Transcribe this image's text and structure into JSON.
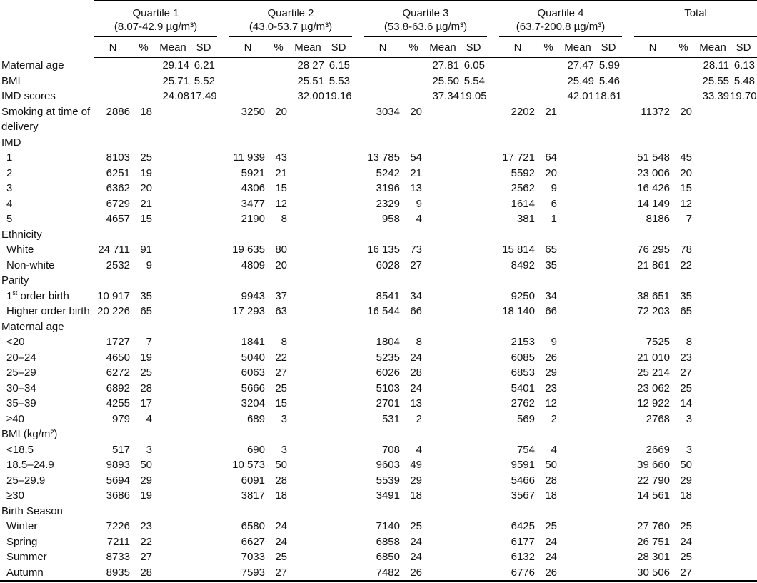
{
  "table": {
    "columns": [
      "N",
      "%",
      "Mean",
      "SD"
    ],
    "groups": [
      {
        "name": "Quartile 1",
        "range": "(8.07-42.9 µg/m³)"
      },
      {
        "name": "Quartile 2",
        "range": "(43.0-53.7 µg/m³)"
      },
      {
        "name": "Quartile 3",
        "range": "(53.8-63.6 µg/m³)"
      },
      {
        "name": "Quartile 4",
        "range": "(63.7-200.8 µg/m³)"
      },
      {
        "name": "Total",
        "range": ""
      }
    ],
    "rows": [
      {
        "label": "Maternal age",
        "values": [
          "",
          "",
          "29.14",
          "6.21",
          "",
          "",
          "28 27",
          "6.15",
          "",
          "",
          "27.81",
          "6.05",
          "",
          "",
          "27.47",
          "5.99",
          "",
          "",
          "28.11",
          "6.13"
        ]
      },
      {
        "label": "BMI",
        "values": [
          "",
          "",
          "25.71",
          "5.52",
          "",
          "",
          "25.51",
          "5.53",
          "",
          "",
          "25.50",
          "5.54",
          "",
          "",
          "25.49",
          "5.46",
          "",
          "",
          "25.55",
          "5.48"
        ]
      },
      {
        "label": "IMD scores",
        "values": [
          "",
          "",
          "24.08",
          "17.49",
          "",
          "",
          "32.00",
          "19.16",
          "",
          "",
          "37.34",
          "19.05",
          "",
          "",
          "42.01",
          "18.61",
          "",
          "",
          "33.39",
          "19.70"
        ]
      },
      {
        "label": "Smoking at time of delivery",
        "values": [
          "2886",
          "18",
          "",
          "",
          "3250",
          "20",
          "",
          "",
          "3034",
          "20",
          "",
          "",
          "2202",
          "21",
          "",
          "",
          "11372",
          "20",
          "",
          ""
        ]
      },
      {
        "label": "IMD",
        "section": true
      },
      {
        "label": "1",
        "indent": true,
        "values": [
          "8103",
          "25",
          "",
          "",
          "11 939",
          "43",
          "",
          "",
          "13 785",
          "54",
          "",
          "",
          "17 721",
          "64",
          "",
          "",
          "51 548",
          "45",
          "",
          ""
        ]
      },
      {
        "label": "2",
        "indent": true,
        "values": [
          "6251",
          "19",
          "",
          "",
          "5921",
          "21",
          "",
          "",
          "5242",
          "21",
          "",
          "",
          "5592",
          "20",
          "",
          "",
          "23 006",
          "20",
          "",
          ""
        ]
      },
      {
        "label": "3",
        "indent": true,
        "values": [
          "6362",
          "20",
          "",
          "",
          "4306",
          "15",
          "",
          "",
          "3196",
          "13",
          "",
          "",
          "2562",
          "9",
          "",
          "",
          "16 426",
          "15",
          "",
          ""
        ]
      },
      {
        "label": "4",
        "indent": true,
        "values": [
          "6729",
          "21",
          "",
          "",
          "3477",
          "12",
          "",
          "",
          "2329",
          "9",
          "",
          "",
          "1614",
          "6",
          "",
          "",
          "14 149",
          "12",
          "",
          ""
        ]
      },
      {
        "label": "5",
        "indent": true,
        "values": [
          "4657",
          "15",
          "",
          "",
          "2190",
          "8",
          "",
          "",
          "958",
          "4",
          "",
          "",
          "381",
          "1",
          "",
          "",
          "8186",
          "7",
          "",
          ""
        ]
      },
      {
        "label": "Ethnicity",
        "section": true
      },
      {
        "label": "White",
        "indent": true,
        "values": [
          "24 711",
          "91",
          "",
          "",
          "19 635",
          "80",
          "",
          "",
          "16 135",
          "73",
          "",
          "",
          "15 814",
          "65",
          "",
          "",
          "76 295",
          "78",
          "",
          ""
        ]
      },
      {
        "label": "Non-white",
        "indent": true,
        "values": [
          "2532",
          "9",
          "",
          "",
          "4809",
          "20",
          "",
          "",
          "6028",
          "27",
          "",
          "",
          "8492",
          "35",
          "",
          "",
          "21 861",
          "22",
          "",
          ""
        ]
      },
      {
        "label": "Parity",
        "section": true
      },
      {
        "label": "1st order birth",
        "indent": true,
        "label_parts": [
          {
            "text": "1"
          },
          {
            "text": "st",
            "sup": true
          },
          {
            "text": " order birth"
          }
        ],
        "values": [
          "10 917",
          "35",
          "",
          "",
          "9943",
          "37",
          "",
          "",
          "8541",
          "34",
          "",
          "",
          "9250",
          "34",
          "",
          "",
          "38 651",
          "35",
          "",
          ""
        ]
      },
      {
        "label": "Higher order birth",
        "indent": true,
        "values": [
          "20 226",
          "65",
          "",
          "",
          "17 293",
          "63",
          "",
          "",
          "16 544",
          "66",
          "",
          "",
          "18 140",
          "66",
          "",
          "",
          "72 203",
          "65",
          "",
          ""
        ]
      },
      {
        "label": "Maternal age",
        "section": true
      },
      {
        "label": "<20",
        "indent": true,
        "values": [
          "1727",
          "7",
          "",
          "",
          "1841",
          "8",
          "",
          "",
          "1804",
          "8",
          "",
          "",
          "2153",
          "9",
          "",
          "",
          "7525",
          "8",
          "",
          ""
        ]
      },
      {
        "label": "20–24",
        "indent": true,
        "values": [
          "4650",
          "19",
          "",
          "",
          "5040",
          "22",
          "",
          "",
          "5235",
          "24",
          "",
          "",
          "6085",
          "26",
          "",
          "",
          "21 010",
          "23",
          "",
          ""
        ]
      },
      {
        "label": "25–29",
        "indent": true,
        "values": [
          "6272",
          "25",
          "",
          "",
          "6063",
          "27",
          "",
          "",
          "6026",
          "28",
          "",
          "",
          "6853",
          "29",
          "",
          "",
          "25 214",
          "27",
          "",
          ""
        ]
      },
      {
        "label": "30–34",
        "indent": true,
        "values": [
          "6892",
          "28",
          "",
          "",
          "5666",
          "25",
          "",
          "",
          "5103",
          "24",
          "",
          "",
          "5401",
          "23",
          "",
          "",
          "23 062",
          "25",
          "",
          ""
        ]
      },
      {
        "label": "35–39",
        "indent": true,
        "values": [
          "4255",
          "17",
          "",
          "",
          "3204",
          "15",
          "",
          "",
          "2701",
          "13",
          "",
          "",
          "2762",
          "12",
          "",
          "",
          "12 922",
          "14",
          "",
          ""
        ]
      },
      {
        "label": "≥40",
        "indent": true,
        "values": [
          "979",
          "4",
          "",
          "",
          "689",
          "3",
          "",
          "",
          "531",
          "2",
          "",
          "",
          "569",
          "2",
          "",
          "",
          "2768",
          "3",
          "",
          ""
        ]
      },
      {
        "label": "BMI (kg/m²)",
        "section": true
      },
      {
        "label": "<18.5",
        "indent": true,
        "values": [
          "517",
          "3",
          "",
          "",
          "690",
          "3",
          "",
          "",
          "708",
          "4",
          "",
          "",
          "754",
          "4",
          "",
          "",
          "2669",
          "3",
          "",
          ""
        ]
      },
      {
        "label": "18.5–24.9",
        "indent": true,
        "values": [
          "9893",
          "50",
          "",
          "",
          "10 573",
          "50",
          "",
          "",
          "9603",
          "49",
          "",
          "",
          "9591",
          "50",
          "",
          "",
          "39 660",
          "50",
          "",
          ""
        ]
      },
      {
        "label": "25–29.9",
        "indent": true,
        "values": [
          "5694",
          "29",
          "",
          "",
          "6091",
          "28",
          "",
          "",
          "5539",
          "29",
          "",
          "",
          "5466",
          "28",
          "",
          "",
          "22 790",
          "29",
          "",
          ""
        ]
      },
      {
        "label": "≥30",
        "indent": true,
        "values": [
          "3686",
          "19",
          "",
          "",
          "3817",
          "18",
          "",
          "",
          "3491",
          "18",
          "",
          "",
          "3567",
          "18",
          "",
          "",
          "14 561",
          "18",
          "",
          ""
        ]
      },
      {
        "label": "Birth Season",
        "section": true
      },
      {
        "label": "Winter",
        "indent": true,
        "values": [
          "7226",
          "23",
          "",
          "",
          "6580",
          "24",
          "",
          "",
          "7140",
          "25",
          "",
          "",
          "6425",
          "25",
          "",
          "",
          "27 760",
          "25",
          "",
          ""
        ]
      },
      {
        "label": "Spring",
        "indent": true,
        "values": [
          "7211",
          "22",
          "",
          "",
          "6627",
          "24",
          "",
          "",
          "6858",
          "24",
          "",
          "",
          "6177",
          "24",
          "",
          "",
          "26 751",
          "24",
          "",
          ""
        ]
      },
      {
        "label": "Summer",
        "indent": true,
        "values": [
          "8733",
          "27",
          "",
          "",
          "7033",
          "25",
          "",
          "",
          "6850",
          "24",
          "",
          "",
          "6132",
          "24",
          "",
          "",
          "28 301",
          "25",
          "",
          ""
        ]
      },
      {
        "label": "Autumn",
        "indent": true,
        "values": [
          "8935",
          "28",
          "",
          "",
          "7593",
          "27",
          "",
          "",
          "7482",
          "26",
          "",
          "",
          "6776",
          "26",
          "",
          "",
          "30 506",
          "27",
          "",
          ""
        ]
      }
    ]
  }
}
